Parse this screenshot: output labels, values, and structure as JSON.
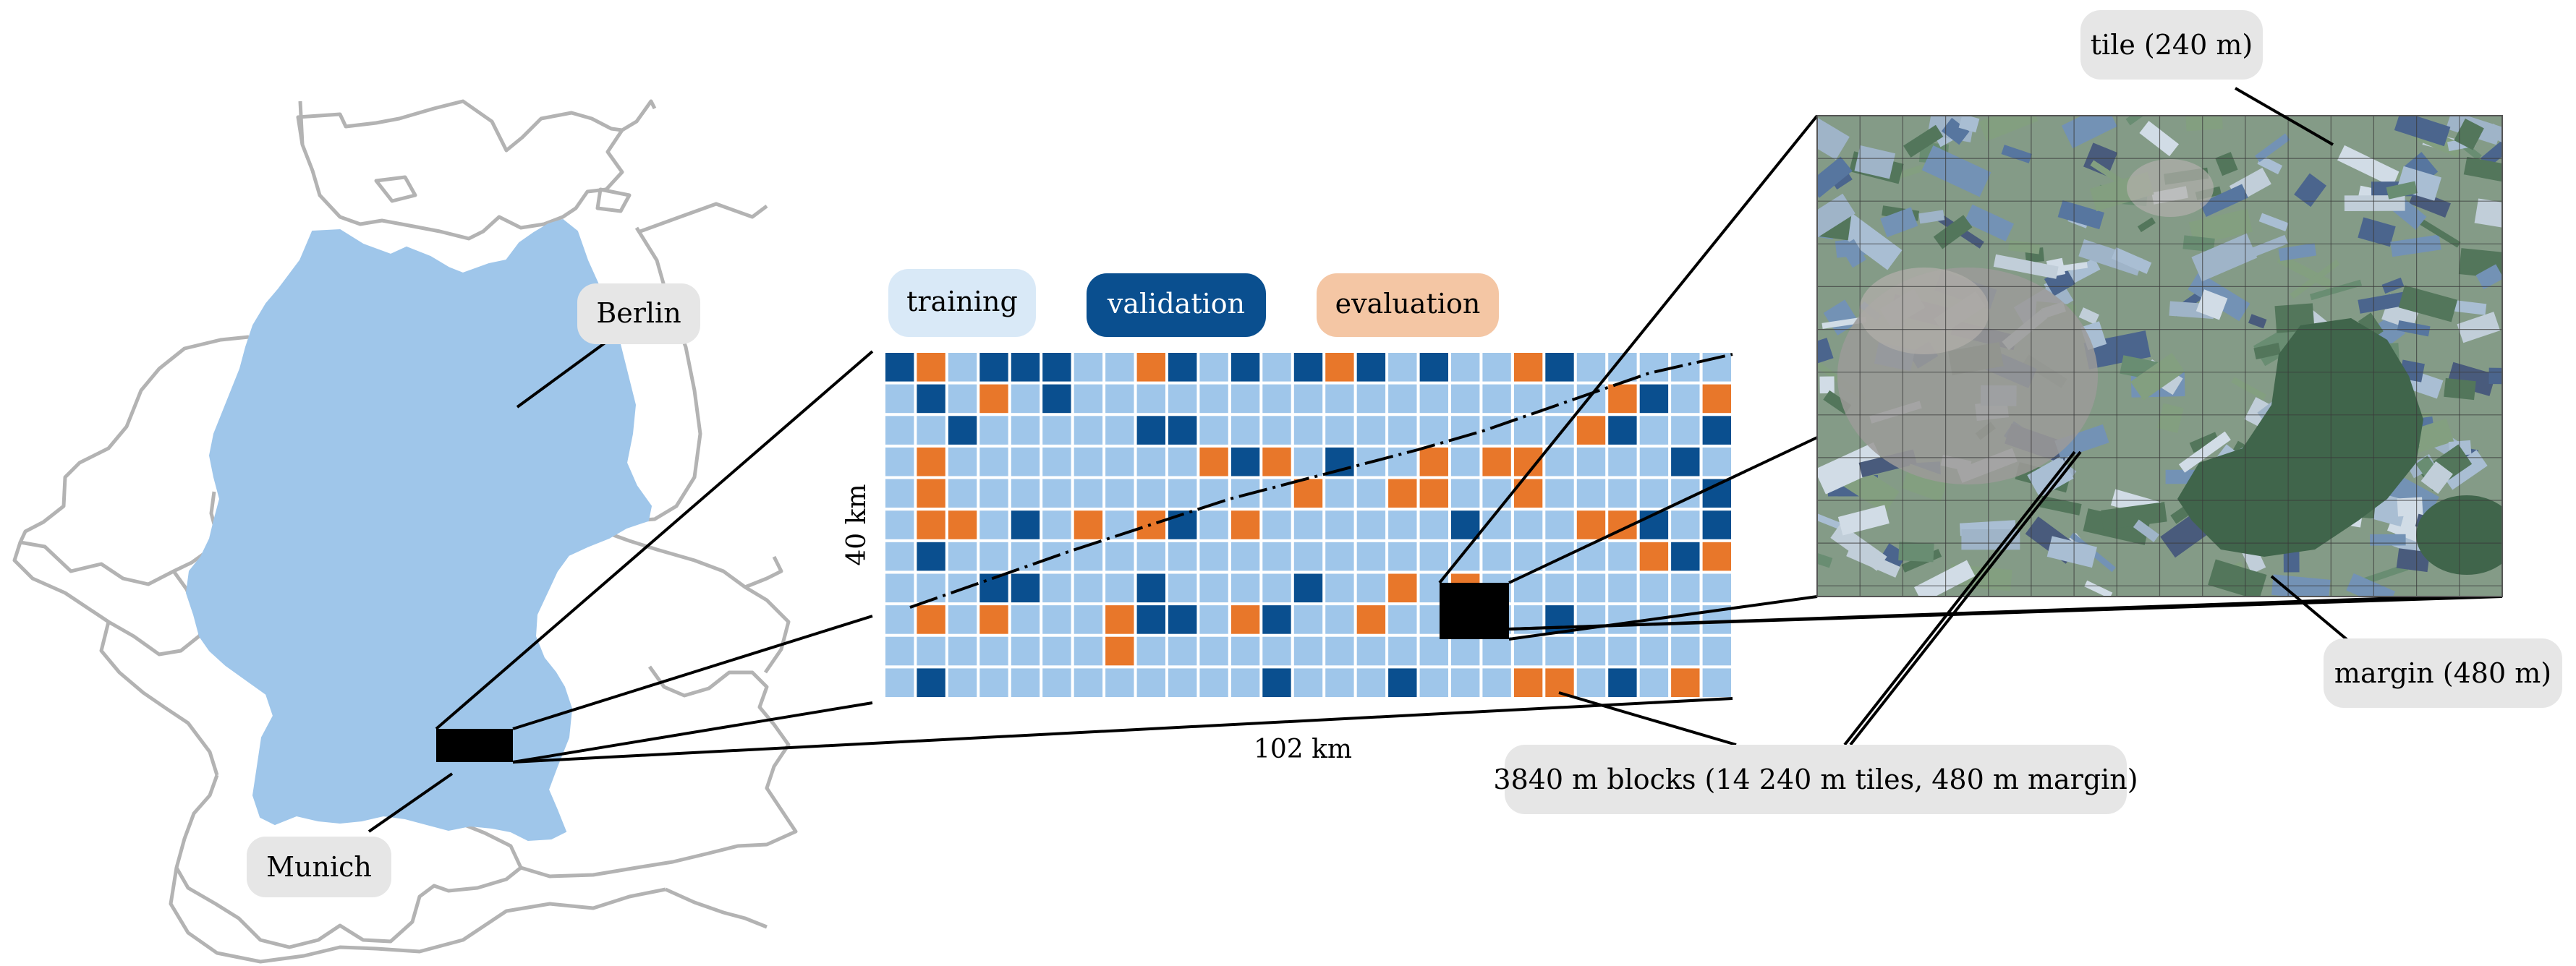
{
  "places": {
    "berlin": "Berlin",
    "munich": "Munich"
  },
  "legend": {
    "training": "training",
    "validation": "validation",
    "evaluation": "evaluation"
  },
  "dimensions": {
    "height": "40 km",
    "width": "102 km"
  },
  "callouts": {
    "blocks": "3840 m blocks (14 240 m tiles, 480 m margin)",
    "tile": "tile (240 m)",
    "margin": "margin (480 m)"
  },
  "colors": {
    "germany_fill": "#9fc6ea",
    "border_line": "#b3b3b3",
    "training": "#9fc6ea",
    "validation": "#0a4f8f",
    "evaluation": "#e8772a",
    "training_pill": "#d9e9f7",
    "evaluation_pill": "#f4c6a4",
    "label_pill": "#e6e6e6"
  },
  "grid": {
    "cols": 27,
    "rows": 11,
    "cells": [
      "VETVVVTTEVTVTVEVTVTTEVTTTTT",
      "TVTETVTTTTTTTTTTTTTTTTTEVTE",
      "TTVTTTTTVVTTTTTTTTTTTTEVTTV",
      "TETTTTTTTTEVETVTTETEETTTTVT",
      "TETTTTTTTTTTTETTEETTETTTTTV",
      "TEETVTETEVTETTTTTTVTTTEEVTV",
      "TVTTTTTTTTTTTTTTTTTTTTTTEVE",
      "TTTVVTTTVTTTTVTTETETTTTTTTT",
      "TETETTTEVVTEVTTETTTTTVTTTTT",
      "TTTTTTTETTTTTTTTTTTTTTTTTTT",
      "TVTTTTTTTTTTVTTTVTTTEETVTET"
    ]
  }
}
